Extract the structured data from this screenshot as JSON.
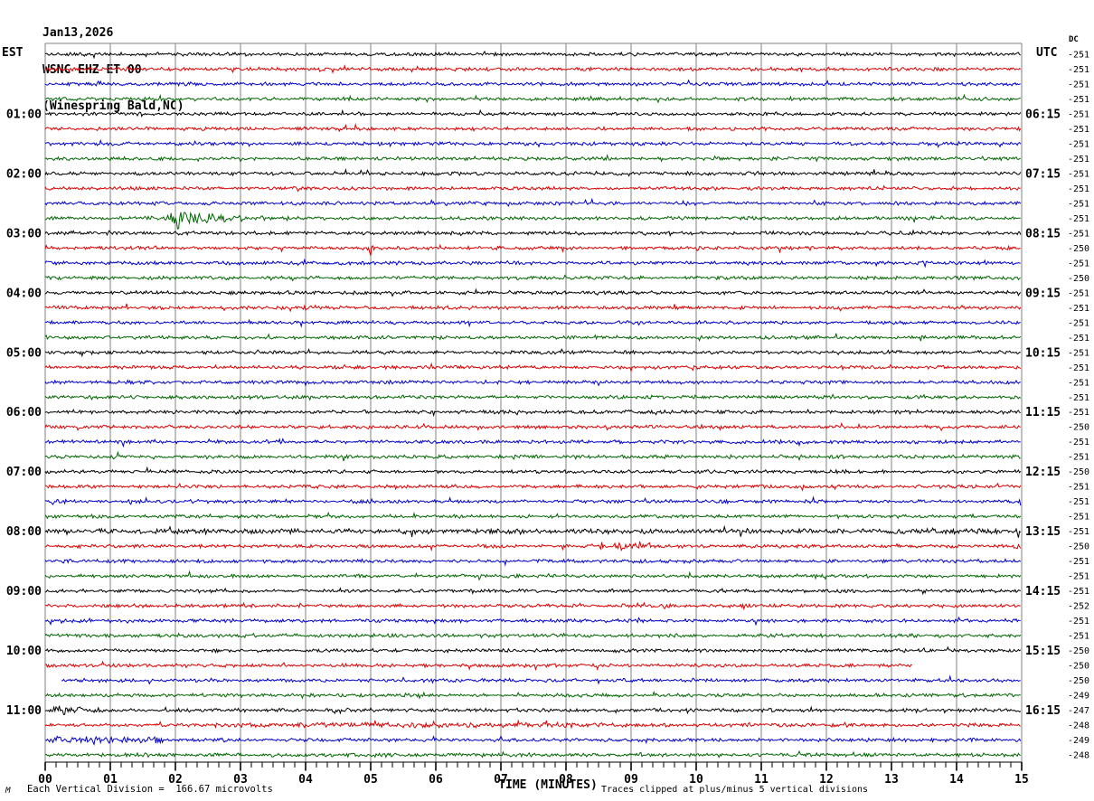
{
  "title": {
    "date": "Jan13,2026",
    "station": "WSNC EHZ ET 00",
    "location": "(Winespring Bald,NC)"
  },
  "headers": {
    "left": "EST",
    "right": "UTC",
    "dc": "DC"
  },
  "x_axis": {
    "title": "TIME (MINUTES)"
  },
  "footer": {
    "scale_note": "Each Vertical Division =  166.67 microvolts",
    "clip_note": "Traces clipped at plus/minus 5 vertical divisions",
    "watermark": "M"
  },
  "chart_data": {
    "type": "helicorder-seismogram",
    "station": "WSNC EHZ ET 00",
    "station_name": "Winespring Bald, NC",
    "date": "Jan13,2026",
    "timezone_left": "EST",
    "timezone_right": "UTC",
    "minutes_per_row": 15,
    "x_tick_labels": [
      "00",
      "01",
      "02",
      "03",
      "04",
      "05",
      "06",
      "07",
      "08",
      "09",
      "10",
      "11",
      "12",
      "13",
      "14",
      "15"
    ],
    "minor_ticks_per_minute": 6,
    "vertical_division_microvolts": 166.67,
    "clipping_note": "Traces clipped at plus/minus 5 vertical divisions",
    "colors": {
      "trace_cycle": [
        "#000000",
        "#dd0000",
        "#0000cc",
        "#006600"
      ],
      "grid": "#808080",
      "background": "#ffffff"
    },
    "rows": [
      {
        "c": 0,
        "est": "",
        "utc": "",
        "dc": "-251"
      },
      {
        "c": 1,
        "dc": "-251"
      },
      {
        "c": 2,
        "dc": "-251"
      },
      {
        "c": 3,
        "dc": "-251"
      },
      {
        "c": 0,
        "est": "01:00",
        "utc": "06:15",
        "dc": "-251"
      },
      {
        "c": 1,
        "dc": "-251"
      },
      {
        "c": 2,
        "dc": "-251"
      },
      {
        "c": 3,
        "dc": "-251"
      },
      {
        "c": 0,
        "est": "02:00",
        "utc": "07:15",
        "dc": "-251"
      },
      {
        "c": 1,
        "dc": "-251"
      },
      {
        "c": 2,
        "dc": "-251"
      },
      {
        "c": 3,
        "dc": "-251"
      },
      {
        "c": 0,
        "est": "03:00",
        "utc": "08:15",
        "dc": "-251"
      },
      {
        "c": 1,
        "dc": "-250"
      },
      {
        "c": 2,
        "dc": "-251"
      },
      {
        "c": 3,
        "dc": "-250"
      },
      {
        "c": 0,
        "est": "04:00",
        "utc": "09:15",
        "dc": "-251"
      },
      {
        "c": 1,
        "dc": "-251"
      },
      {
        "c": 2,
        "dc": "-251"
      },
      {
        "c": 3,
        "dc": "-251"
      },
      {
        "c": 0,
        "est": "05:00",
        "utc": "10:15",
        "dc": "-251"
      },
      {
        "c": 1,
        "dc": "-251"
      },
      {
        "c": 2,
        "dc": "-251"
      },
      {
        "c": 3,
        "dc": "-251"
      },
      {
        "c": 0,
        "est": "06:00",
        "utc": "11:15",
        "dc": "-251"
      },
      {
        "c": 1,
        "dc": "-250"
      },
      {
        "c": 2,
        "dc": "-251"
      },
      {
        "c": 3,
        "dc": "-251"
      },
      {
        "c": 0,
        "est": "07:00",
        "utc": "12:15",
        "dc": "-250"
      },
      {
        "c": 1,
        "dc": "-251"
      },
      {
        "c": 2,
        "dc": "-251"
      },
      {
        "c": 3,
        "dc": "-251"
      },
      {
        "c": 0,
        "est": "08:00",
        "utc": "13:15",
        "dc": "-251"
      },
      {
        "c": 1,
        "dc": "-250"
      },
      {
        "c": 2,
        "dc": "-251"
      },
      {
        "c": 3,
        "dc": "-251"
      },
      {
        "c": 0,
        "est": "09:00",
        "utc": "14:15",
        "dc": "-251"
      },
      {
        "c": 1,
        "dc": "-252"
      },
      {
        "c": 2,
        "dc": "-251"
      },
      {
        "c": 3,
        "dc": "-251"
      },
      {
        "c": 0,
        "est": "10:00",
        "utc": "15:15",
        "dc": "-250"
      },
      {
        "c": 1,
        "dc": "-250"
      },
      {
        "c": 2,
        "dc": "-250"
      },
      {
        "c": 3,
        "dc": "-249"
      },
      {
        "c": 0,
        "est": "11:00",
        "utc": "16:15",
        "dc": "-247"
      },
      {
        "c": 1,
        "dc": "-248"
      },
      {
        "c": 2,
        "dc": "-249"
      },
      {
        "c": 3,
        "dc": "-248"
      }
    ],
    "events": [
      {
        "row": 3,
        "type": "spike",
        "at": 0.81,
        "amp": 7,
        "note": "small blue spike near minute 0.8"
      },
      {
        "row": 12,
        "type": "burst",
        "start": 1.85,
        "end": 3.9,
        "amp": 13,
        "note": "seismic event burst on 02:45 EST green trace"
      },
      {
        "row": 14,
        "type": "spike",
        "at": 5.0,
        "amp": 9,
        "note": "red spike at minute 5 on 03:15 EST trace"
      },
      {
        "row": 33,
        "type": "elevated",
        "start": 0,
        "end": 15,
        "amp": 3,
        "note": "slightly noisy 08:00 EST black trace"
      },
      {
        "row": 34,
        "type": "elevated",
        "start": 8.4,
        "end": 9.3,
        "amp": 4
      },
      {
        "row": 34,
        "type": "spike",
        "at": 14.93,
        "amp": 8,
        "note": "spike at right edge of 08:15 EST red trace"
      },
      {
        "row": 42,
        "type": "data_end",
        "at": 13.33,
        "note": "trace stops ~minute 13.3 (data gap)"
      },
      {
        "row": 43,
        "type": "data_start",
        "at": 0.25,
        "note": "trace resumes ~minute 0.25"
      },
      {
        "row": 45,
        "type": "burst",
        "start": 0.1,
        "end": 1.2,
        "amp": 7,
        "note": "burst at start of 11:00 EST black trace"
      },
      {
        "row": 46,
        "type": "elevated",
        "start": 2.6,
        "end": 8.6,
        "amp": 3
      },
      {
        "row": 47,
        "type": "elevated",
        "start": 0.05,
        "end": 1.8,
        "amp": 4
      },
      {
        "row": 48,
        "type": "burst",
        "start": 5.05,
        "end": 5.6,
        "amp": 5
      }
    ]
  }
}
